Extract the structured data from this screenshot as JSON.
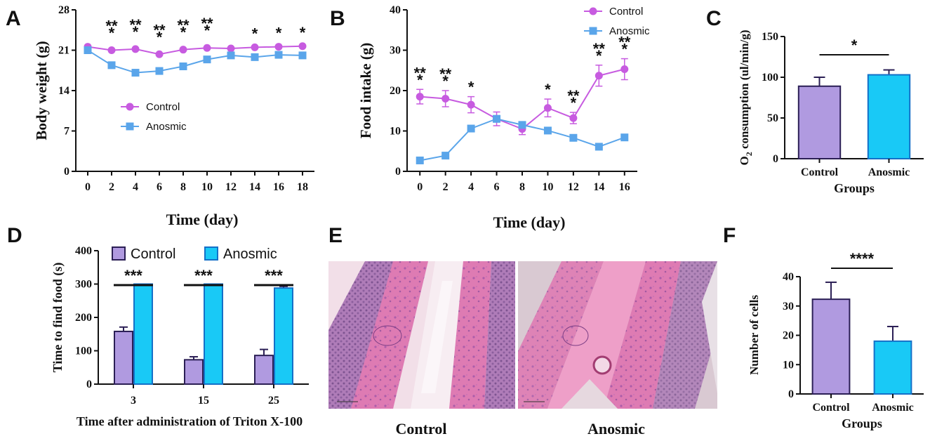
{
  "colors": {
    "control_line": "#c75be0",
    "anosmic_line": "#5aa5ea",
    "control_bar": "#b09ae0",
    "anosmic_bar": "#19c9f6",
    "bar_edge": "#2b1f55",
    "anosmic_edge": "#1470c8",
    "tissue_bg": "#ecd7e2",
    "tissue_pink": "#e07ab0",
    "tissue_purple": "#9a5a9a"
  },
  "chart_data": [
    {
      "id": "A",
      "type": "line",
      "panel_label": "A",
      "xlabel": "Time (day)",
      "ylabel": "Body weight (g)",
      "x": [
        0,
        2,
        4,
        6,
        8,
        10,
        12,
        14,
        16,
        18
      ],
      "xlim": [
        -1,
        19
      ],
      "ylim": [
        0,
        28
      ],
      "yticks": [
        0,
        7,
        14,
        21,
        28
      ],
      "series": [
        {
          "name": "Control",
          "marker": "circle",
          "values": [
            21.6,
            21.0,
            21.2,
            20.3,
            21.1,
            21.4,
            21.3,
            21.5,
            21.6,
            21.7
          ]
        },
        {
          "name": "Anosmic",
          "marker": "square",
          "values": [
            21.0,
            18.4,
            17.1,
            17.4,
            18.2,
            19.4,
            20.1,
            19.8,
            20.2,
            20.1
          ]
        }
      ],
      "annotations": [
        {
          "x": 2,
          "text": "**"
        },
        {
          "x": 4,
          "text": "**"
        },
        {
          "x": 6,
          "text": "**"
        },
        {
          "x": 8,
          "text": "**"
        },
        {
          "x": 10,
          "text": "**"
        },
        {
          "x": 14,
          "text": "*"
        },
        {
          "x": 16,
          "text": "*"
        },
        {
          "x": 18,
          "text": "*"
        }
      ],
      "legend": [
        "Control",
        "Anosmic"
      ]
    },
    {
      "id": "B",
      "type": "line",
      "panel_label": "B",
      "xlabel": "Time (day)",
      "ylabel": "Food intake (g)",
      "x": [
        0,
        2,
        4,
        6,
        8,
        10,
        12,
        14,
        16
      ],
      "xlim": [
        -1,
        17
      ],
      "ylim": [
        0,
        40
      ],
      "yticks": [
        0,
        10,
        20,
        30,
        40
      ],
      "series": [
        {
          "name": "Control",
          "marker": "circle",
          "values": [
            18.5,
            18.0,
            16.5,
            13.0,
            10.5,
            15.7,
            13.2,
            23.7,
            25.3
          ],
          "errors": [
            1.8,
            2.0,
            2.0,
            1.7,
            1.4,
            2.2,
            1.4,
            2.6,
            2.6
          ]
        },
        {
          "name": "Anosmic",
          "marker": "square",
          "values": [
            2.7,
            3.9,
            10.6,
            13.0,
            11.5,
            10.1,
            8.3,
            6.1,
            8.4
          ],
          "errors": [
            0.3,
            0.4,
            0.4,
            0.8,
            0.7,
            0.4,
            0.4,
            0.3,
            0.4
          ]
        }
      ],
      "annotations": [
        {
          "x": 0,
          "text": "**"
        },
        {
          "x": 2,
          "text": "**"
        },
        {
          "x": 4,
          "text": "*"
        },
        {
          "x": 10,
          "text": "*"
        },
        {
          "x": 12,
          "text": "**"
        },
        {
          "x": 14,
          "text": "**"
        },
        {
          "x": 16,
          "text": "**"
        }
      ],
      "legend": [
        "Control",
        "Anosmic"
      ]
    },
    {
      "id": "C",
      "type": "bar",
      "panel_label": "C",
      "xlabel": "Groups",
      "ylabel": "O2 consumption (ul/min/g)",
      "categories": [
        "Control",
        "Anosmic"
      ],
      "values": [
        89,
        103
      ],
      "errors": [
        11,
        6
      ],
      "ylim": [
        0,
        150
      ],
      "yticks": [
        0,
        50,
        100,
        150
      ],
      "significance": "*"
    },
    {
      "id": "D",
      "type": "bar",
      "panel_label": "D",
      "xlabel": "Time after administration of Triton X-100",
      "ylabel": "Time to find food (s)",
      "categories": [
        "3",
        "15",
        "25"
      ],
      "series": [
        {
          "name": "Control",
          "values": [
            158,
            73,
            86
          ],
          "errors": [
            13,
            9,
            18
          ]
        },
        {
          "name": "Anosmic",
          "values": [
            300,
            300,
            288
          ],
          "errors": [
            0,
            0,
            5
          ]
        }
      ],
      "ylim": [
        0,
        400
      ],
      "yticks": [
        0,
        100,
        200,
        300,
        400
      ],
      "significance": [
        "***",
        "***",
        "***"
      ],
      "legend": [
        "Control",
        "Anosmic"
      ]
    },
    {
      "id": "F",
      "type": "bar",
      "panel_label": "F",
      "xlabel": "Groups",
      "ylabel": "Number of cells",
      "categories": [
        "Control",
        "Anosmic"
      ],
      "values": [
        32.3,
        18.0
      ],
      "errors": [
        5.8,
        5.0
      ],
      "ylim": [
        0,
        40
      ],
      "yticks": [
        0,
        10,
        20,
        30,
        40
      ],
      "significance": "****"
    }
  ],
  "panel_E": {
    "label": "E",
    "captions": [
      "Control",
      "Anosmic"
    ]
  }
}
